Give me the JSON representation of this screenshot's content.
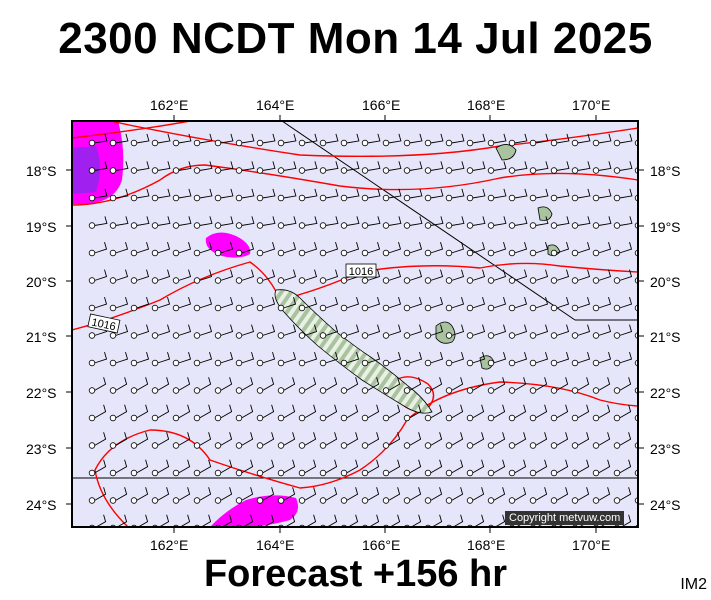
{
  "title": "2300 NCDT Mon 14 Jul 2025",
  "footer": "Forecast +156 hr",
  "image_tag": "IM2",
  "copyright": "Copyright metvuw.com",
  "isobar_label": "1016",
  "colors": {
    "ocean": "#e6e6fa",
    "isobar": "#ff0000",
    "rain_light": "#ff00ff",
    "rain_heavy": "#a020f0",
    "land": "#a9c3a0"
  },
  "lon_labels": [
    "162°E",
    "164°E",
    "166°E",
    "168°E",
    "170°E"
  ],
  "lat_labels": [
    "18°S",
    "19°S",
    "20°S",
    "21°S",
    "22°S",
    "23°S",
    "24°S"
  ]
}
